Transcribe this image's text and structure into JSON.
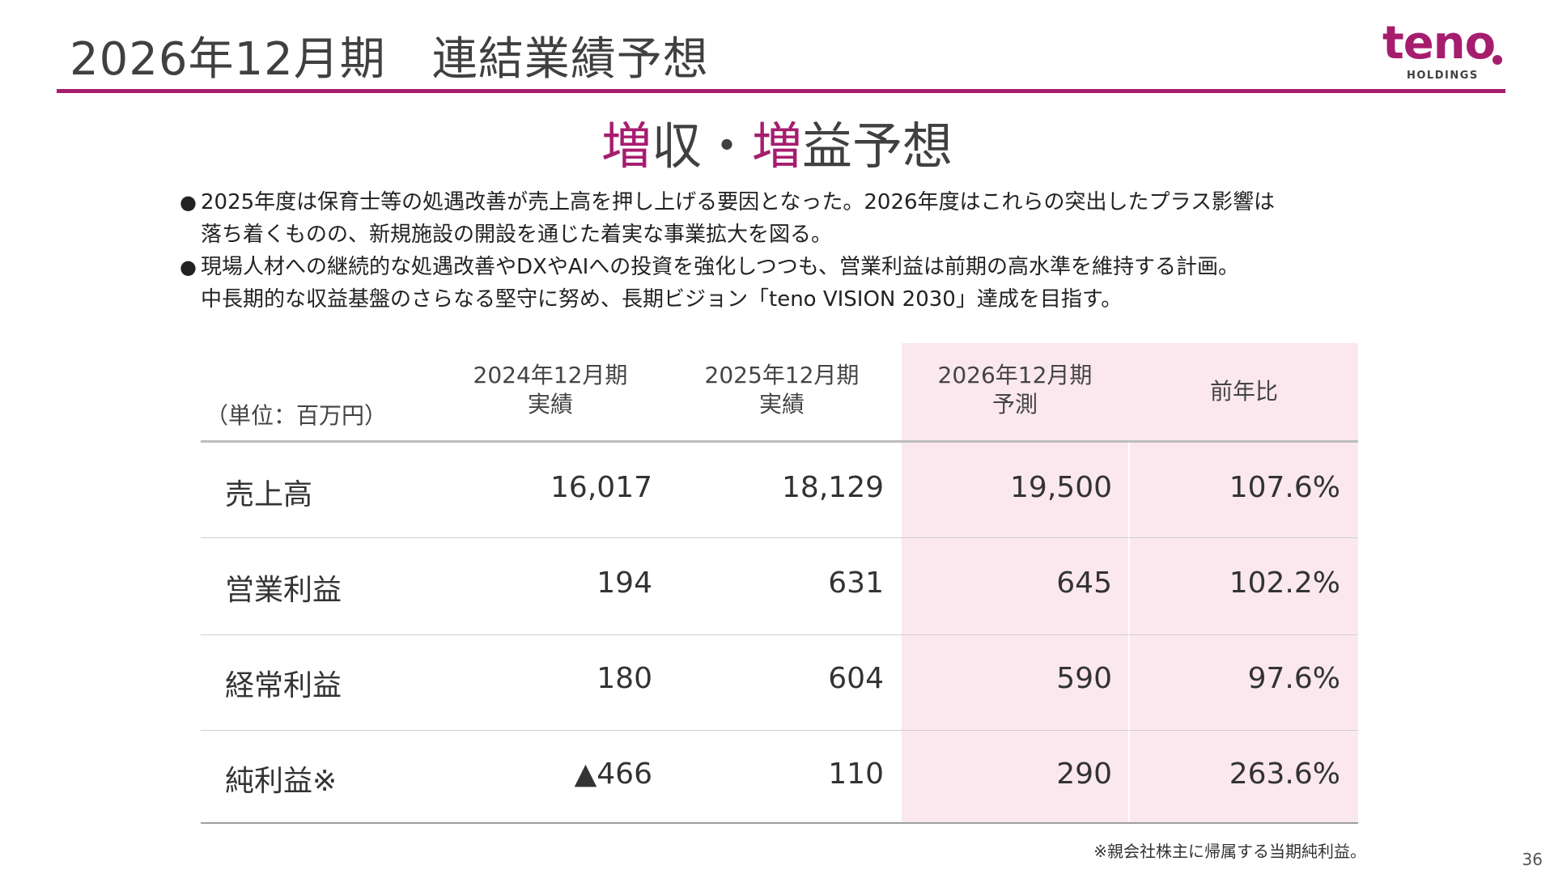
{
  "header": {
    "title": "2026年12月期　連結業績予想",
    "logo": {
      "word": "teno",
      "sub": "HOLDINGS",
      "color": "#a61d6e"
    }
  },
  "headline": {
    "part1_accent": "増",
    "part1_rest": "収・",
    "part2_accent": "増",
    "part2_rest": "益予想"
  },
  "bullets": [
    {
      "mark": "●",
      "lines": [
        "2025年度は保育士等の処遇改善が売上高を押し上げる要因となった。2026年度はこれらの突出したプラス影響は",
        "落ち着くものの、新規施設の開設を通じた着実な事業拡大を図る。"
      ]
    },
    {
      "mark": "●",
      "lines": [
        "現場人材への継続的な処遇改善やDXやAIへの投資を強化しつつも、営業利益は前期の高水準を維持する計画。",
        "中長期的な収益基盤のさらなる堅守に努め、長期ビジョン「teno VISION 2030」達成を目指す。"
      ]
    }
  ],
  "table": {
    "unit": "（単位：百万円）",
    "columns": [
      {
        "line1": "2024年12月期",
        "line2": "実績"
      },
      {
        "line1": "2025年12月期",
        "line2": "実績"
      },
      {
        "line1": "2026年12月期",
        "line2": "予測"
      },
      {
        "line1": "前年比",
        "line2": ""
      }
    ],
    "rows": [
      {
        "label": "売上高",
        "values": [
          "16,017",
          "18,129",
          "19,500",
          "107.6%"
        ]
      },
      {
        "label": "営業利益",
        "values": [
          "194",
          "631",
          "645",
          "102.2%"
        ]
      },
      {
        "label": "経常利益",
        "values": [
          "180",
          "604",
          "590",
          "97.6%"
        ]
      },
      {
        "label": "純利益※",
        "values": [
          "▲466",
          "110",
          "290",
          "263.6%"
        ]
      }
    ],
    "highlight_color": "#fbe8ef"
  },
  "footnote": "※親会社株主に帰属する当期純利益。",
  "page_number": "36"
}
